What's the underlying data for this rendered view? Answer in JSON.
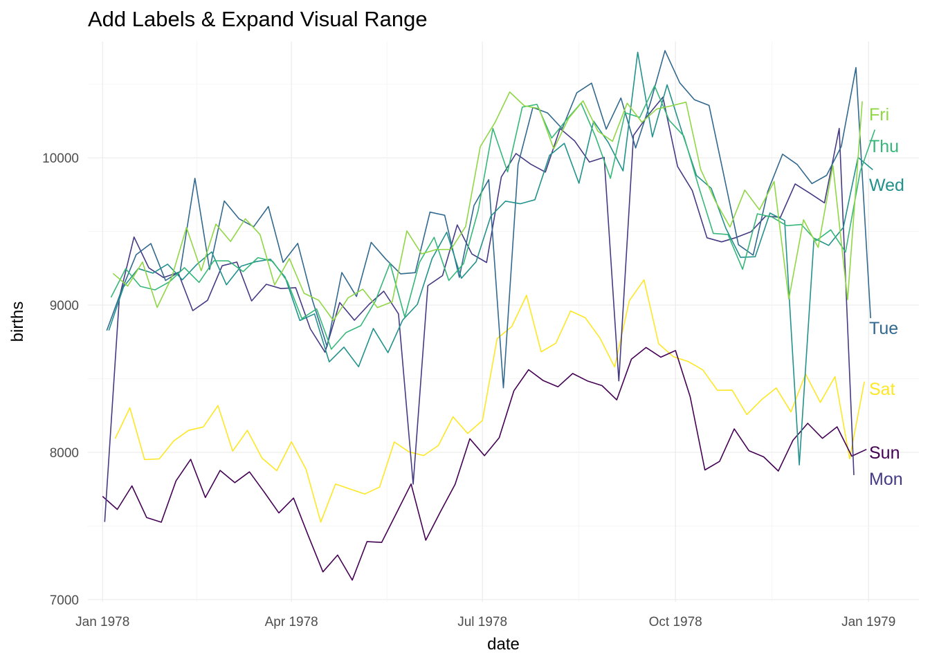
{
  "chart_data": {
    "type": "line",
    "title": "Add Labels & Expand Visual Range",
    "xlabel": "date",
    "ylabel": "births",
    "x_axis_type": "date",
    "xlim": [
      "1977-12-25",
      "1979-01-25"
    ],
    "ylim": [
      6985,
      10790
    ],
    "x_ticks": [
      {
        "date": "1978-01-01",
        "label": "Jan 1978"
      },
      {
        "date": "1978-04-01",
        "label": "Apr 1978"
      },
      {
        "date": "1978-07-01",
        "label": "Jul 1978"
      },
      {
        "date": "1978-10-01",
        "label": "Oct 1978"
      },
      {
        "date": "1979-01-01",
        "label": "Jan 1979"
      }
    ],
    "y_ticks": [
      7000,
      8000,
      9000,
      10000
    ],
    "grid": true,
    "legend": "none (series labeled at line ends)",
    "series": [
      {
        "name": "Sun",
        "color": "#440154",
        "start": "1978-01-01",
        "values": [
          7701,
          7612,
          7772,
          7557,
          7525,
          7806,
          7952,
          7693,
          7877,
          7794,
          7867,
          7730,
          7588,
          7689,
          7435,
          7188,
          7302,
          7132,
          7393,
          7388,
          7586,
          7785,
          7403,
          7596,
          7782,
          8092,
          7977,
          8099,
          8418,
          8561,
          8487,
          8445,
          8535,
          8485,
          8453,
          8356,
          8633,
          8712,
          8646,
          8691,
          8378,
          7880,
          7938,
          8159,
          8011,
          7969,
          7873,
          8082,
          8197,
          8095,
          8173,
          7974,
          8020
        ]
      },
      {
        "name": "Mon",
        "color": "#443983",
        "start": "1978-01-02",
        "values": [
          7527,
          9051,
          9462,
          9253,
          9187,
          9221,
          8962,
          9032,
          9267,
          9292,
          9028,
          9141,
          9112,
          9118,
          8838,
          8680,
          9017,
          8897,
          9005,
          9094,
          8940,
          7784,
          9132,
          9200,
          9544,
          9347,
          9289,
          9870,
          10029,
          9957,
          9903,
          10199,
          10114,
          9971,
          10003,
          8485,
          10152,
          10291,
          10412,
          9941,
          9777,
          9457,
          9429,
          9459,
          9498,
          9605,
          9596,
          9823,
          9760,
          9694,
          10200,
          7845
        ]
      },
      {
        "name": "Tue",
        "color": "#31688E",
        "start": "1978-01-03",
        "values": [
          8827,
          9098,
          9342,
          9418,
          9167,
          9229,
          9861,
          9241,
          9707,
          9586,
          9532,
          9669,
          9290,
          9419,
          9033,
          8718,
          9221,
          9058,
          9426,
          9311,
          9212,
          9220,
          9631,
          9610,
          9188,
          9676,
          9852,
          8438,
          9955,
          10342,
          10305,
          10198,
          10442,
          10507,
          10195,
          10406,
          10067,
          10372,
          10728,
          10510,
          10395,
          10356,
          9885,
          9410,
          9339,
          9772,
          10025,
          9955,
          9825,
          9881,
          10077,
          10613,
          8911
        ]
      },
      {
        "name": "Wed",
        "color": "#21918C",
        "start": "1978-01-04",
        "values": [
          8828,
          9124,
          9248,
          9217,
          9278,
          9171,
          9277,
          9361,
          9138,
          9264,
          9295,
          9311,
          9189,
          8895,
          8940,
          8614,
          8714,
          8581,
          8841,
          8677,
          8898,
          9005,
          9315,
          9495,
          9182,
          9295,
          9604,
          9706,
          9688,
          9715,
          10017,
          10098,
          9827,
          10249,
          10104,
          9911,
          10717,
          10142,
          10496,
          10180,
          9880,
          9793,
          9521,
          9324,
          9328,
          9625,
          9574,
          7914,
          9454,
          9405,
          9528,
          10003,
          9919
        ]
      },
      {
        "name": "Thu",
        "color": "#35B779",
        "start": "1978-01-05",
        "values": [
          9052,
          9247,
          9127,
          9103,
          9159,
          9254,
          9154,
          9301,
          9300,
          9227,
          9322,
          9298,
          9162,
          8908,
          8974,
          8700,
          8813,
          8860,
          9028,
          9284,
          8918,
          9290,
          9460,
          9167,
          9281,
          9644,
          10199,
          9904,
          10344,
          10363,
          10134,
          10258,
          10372,
          10141,
          9861,
          10306,
          10274,
          10489,
          10255,
          10148,
          9806,
          9487,
          9479,
          9243,
          9620,
          9598,
          9539,
          9547,
          9437,
          9511,
          9360,
          9907,
          10191
        ]
      },
      {
        "name": "Fri",
        "color": "#8FD744",
        "start": "1978-01-06",
        "values": [
          9215,
          9129,
          9292,
          8984,
          9190,
          9527,
          9233,
          9550,
          9432,
          9586,
          9480,
          9137,
          9316,
          9080,
          9032,
          8895,
          9049,
          9108,
          8983,
          9023,
          9504,
          9348,
          9377,
          9378,
          9533,
          10076,
          10240,
          10447,
          10353,
          10335,
          10061,
          10266,
          10387,
          10181,
          10112,
          10371,
          10242,
          10331,
          10353,
          10378,
          9921,
          9706,
          9530,
          9781,
          9647,
          9839,
          9040,
          9579,
          9391,
          9948,
          9037,
          10384
        ]
      },
      {
        "name": "Sat",
        "color": "#FDE725",
        "start": "1978-01-07",
        "values": [
          8093,
          8302,
          7951,
          7955,
          8078,
          8149,
          8172,
          8317,
          8008,
          8149,
          7960,
          7875,
          8071,
          7883,
          7526,
          7785,
          7750,
          7717,
          7764,
          8070,
          8003,
          7978,
          8046,
          8241,
          8128,
          8216,
          8772,
          8854,
          9066,
          8682,
          8741,
          8960,
          8914,
          8776,
          8580,
          9030,
          9171,
          8737,
          8649,
          8617,
          8560,
          8421,
          8422,
          8256,
          8357,
          8437,
          8275,
          8531,
          8339,
          8514,
          7956,
          8480
        ]
      }
    ]
  }
}
